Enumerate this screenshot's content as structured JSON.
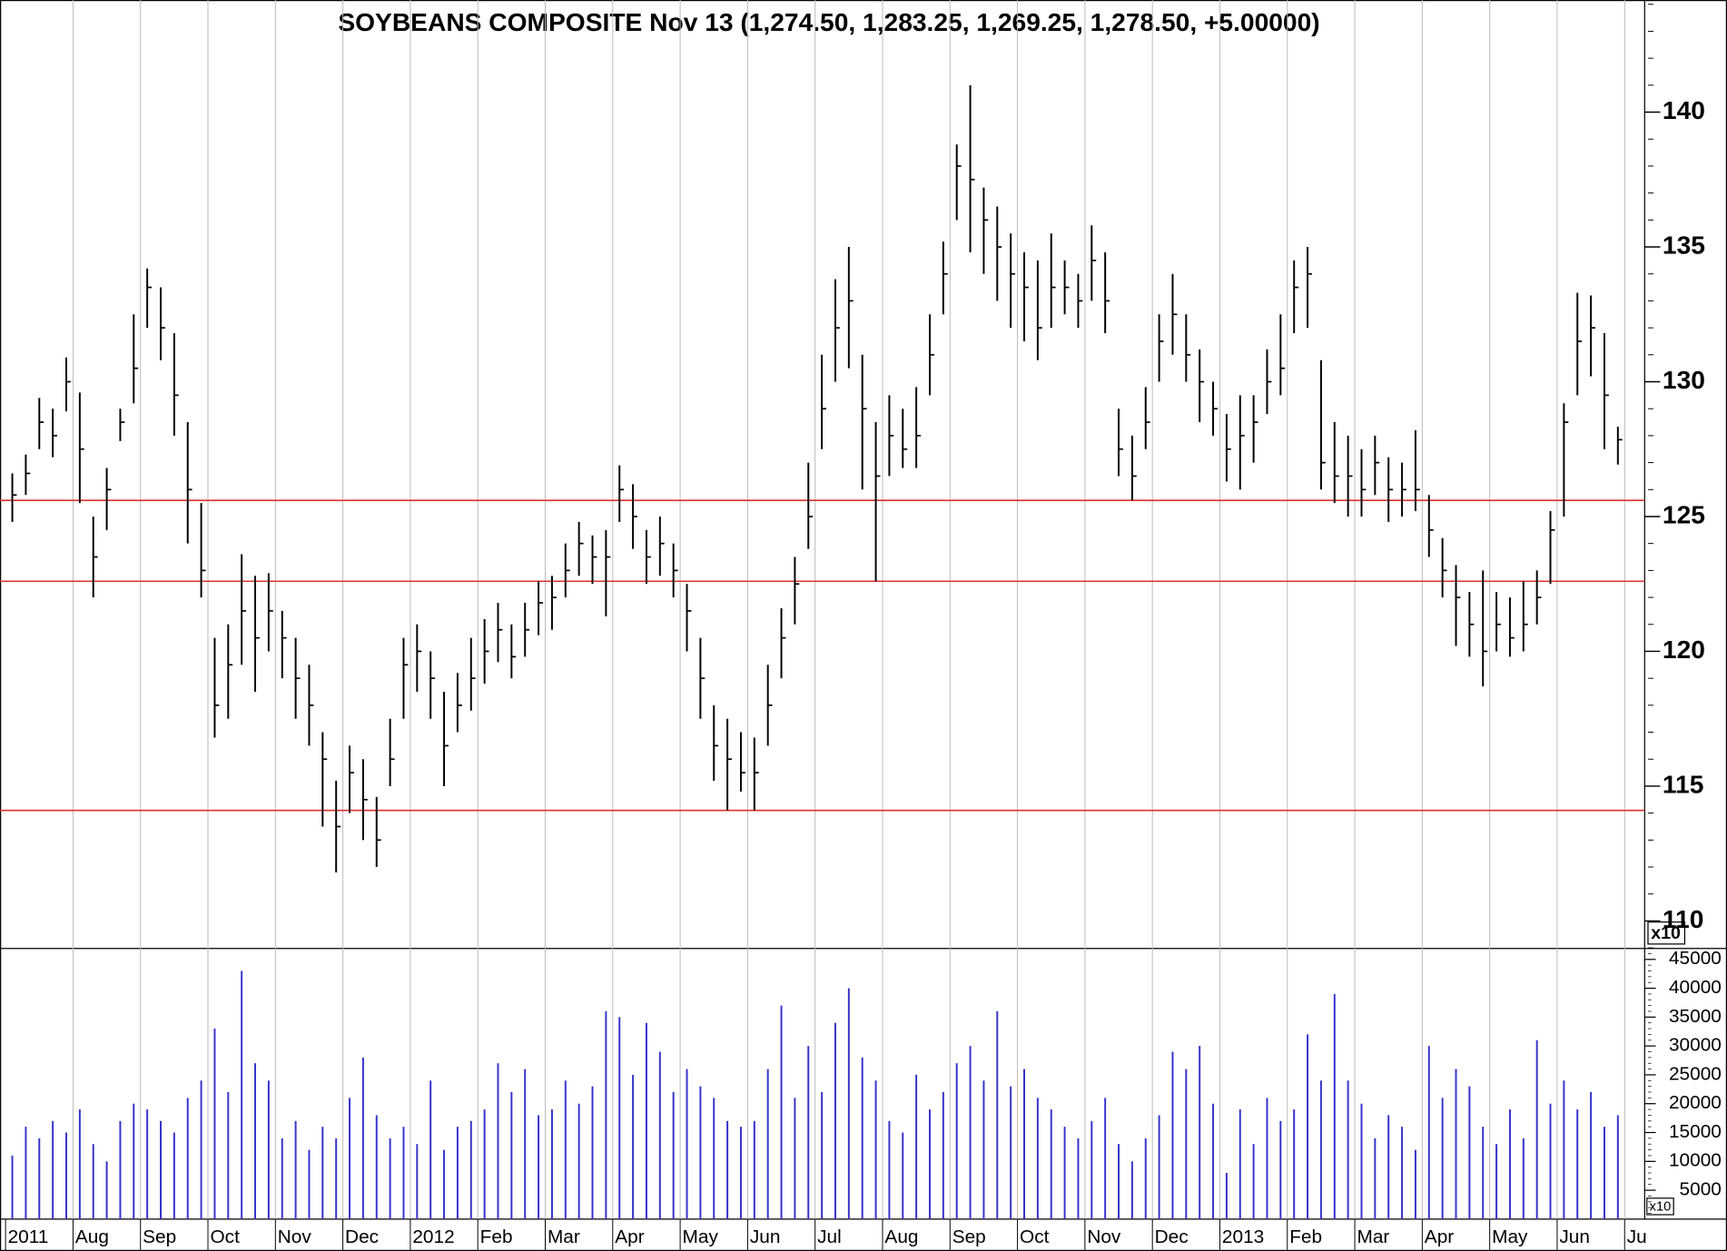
{
  "chart_data": [
    {
      "type": "ohlc",
      "title": "SOYBEANS COMPOSITE Nov 13 (1,274.50, 1,283.25, 1,269.25, 1,278.50, +5.00000)",
      "ylim": [
        108.98,
        144.16
      ],
      "yticks": [
        110,
        115,
        120,
        125,
        130,
        135,
        140
      ],
      "y_multiplier": "x10",
      "color": "#000000",
      "hlines": [
        125.6,
        122.6,
        114.1
      ],
      "hline_color": "#e03030",
      "series": {
        "close": [
          125.8,
          126.6,
          128.5,
          128.0,
          130.0,
          127.5,
          123.5,
          126.0,
          128.5,
          130.5,
          133.5,
          132.0,
          129.5,
          126.0,
          123.0,
          118.0,
          119.5,
          121.5,
          120.5,
          121.5,
          120.5,
          119.0,
          118.0,
          116.0,
          113.5,
          115.5,
          114.5,
          113.0,
          116.0,
          119.5,
          120.0,
          119.0,
          116.5,
          118.0,
          119.0,
          120.0,
          120.8,
          119.8,
          120.8,
          121.8,
          122.0,
          123.0,
          124.0,
          123.5,
          123.5,
          126.0,
          125.0,
          123.5,
          124.0,
          123.0,
          121.5,
          119.0,
          116.5,
          116.0,
          115.5,
          115.5,
          118.0,
          120.5,
          122.5,
          125.0,
          129.0,
          132.0,
          133.0,
          129.0,
          126.5,
          128.0,
          127.5,
          128.0,
          131.0,
          134.0,
          138.0,
          137.5,
          136.0,
          135.0,
          134.0,
          133.5,
          132.0,
          133.5,
          133.5,
          133.0,
          134.5,
          133.0,
          127.5,
          126.5,
          128.5,
          131.5,
          132.5,
          131.0,
          130.0,
          129.0,
          127.5,
          128.0,
          128.5,
          130.0,
          130.5,
          133.5,
          134.0,
          127.0,
          126.5,
          126.5,
          126.0,
          127.0,
          126.0,
          126.0,
          126.0,
          124.5,
          123.0,
          122.0,
          121.0,
          120.0,
          121.0,
          120.5,
          121.0,
          122.0,
          124.5,
          128.5,
          131.5,
          132.0,
          129.5,
          127.85
        ],
        "high": [
          126.6,
          127.3,
          129.4,
          129.0,
          130.9,
          129.6,
          125.0,
          126.8,
          129.0,
          132.5,
          134.2,
          133.5,
          131.8,
          128.5,
          125.5,
          120.5,
          121.0,
          123.6,
          122.8,
          122.9,
          121.5,
          120.5,
          119.5,
          117.0,
          115.2,
          116.5,
          116.0,
          114.6,
          117.5,
          120.5,
          121.0,
          120.0,
          118.5,
          119.2,
          120.5,
          121.2,
          121.8,
          121.0,
          121.8,
          122.6,
          122.8,
          124.0,
          124.8,
          124.3,
          124.5,
          126.9,
          126.2,
          124.5,
          125.0,
          124.0,
          122.5,
          120.5,
          118.0,
          117.5,
          117.0,
          116.8,
          119.5,
          121.6,
          123.5,
          127.0,
          131.0,
          133.8,
          135.0,
          131.0,
          128.5,
          129.5,
          129.0,
          129.8,
          132.5,
          135.2,
          138.8,
          141.0,
          137.2,
          136.5,
          135.5,
          134.8,
          134.5,
          135.5,
          134.5,
          134.0,
          135.8,
          134.8,
          129.0,
          128.0,
          129.8,
          132.5,
          134.0,
          132.5,
          131.2,
          130.0,
          128.8,
          129.5,
          129.5,
          131.2,
          132.5,
          134.5,
          135.0,
          130.8,
          128.5,
          128.0,
          127.5,
          128.0,
          127.2,
          127.0,
          128.2,
          125.8,
          124.2,
          123.2,
          122.2,
          123.0,
          122.2,
          122.0,
          122.6,
          123.0,
          125.2,
          129.2,
          133.3,
          133.2,
          131.8,
          128.33
        ],
        "low": [
          124.8,
          125.8,
          127.5,
          127.2,
          128.9,
          125.5,
          122.0,
          124.5,
          127.8,
          129.2,
          132.0,
          130.8,
          128.0,
          124.0,
          122.0,
          116.8,
          117.5,
          119.5,
          118.5,
          120.0,
          119.0,
          117.5,
          116.5,
          113.5,
          111.8,
          114.0,
          113.0,
          112.0,
          115.0,
          117.5,
          118.5,
          117.5,
          115.0,
          117.0,
          117.8,
          118.8,
          119.6,
          119.0,
          119.8,
          120.6,
          120.8,
          122.0,
          122.8,
          122.5,
          121.3,
          124.8,
          123.8,
          122.5,
          122.8,
          122.0,
          120.0,
          117.5,
          115.2,
          114.1,
          114.8,
          114.1,
          116.5,
          119.0,
          121.0,
          123.8,
          127.5,
          130.0,
          130.5,
          126.0,
          122.6,
          126.5,
          126.8,
          126.8,
          129.5,
          132.5,
          136.0,
          134.8,
          134.0,
          133.0,
          132.0,
          131.5,
          130.8,
          132.0,
          132.5,
          132.0,
          133.0,
          131.8,
          126.5,
          125.6,
          127.5,
          130.0,
          131.0,
          130.0,
          128.5,
          128.0,
          126.3,
          126.0,
          127.0,
          128.8,
          129.5,
          131.8,
          132.0,
          126.0,
          125.5,
          125.0,
          125.0,
          125.8,
          124.8,
          125.0,
          125.2,
          123.5,
          122.0,
          120.2,
          119.8,
          118.7,
          120.0,
          119.8,
          120.0,
          121.0,
          122.5,
          125.0,
          129.5,
          130.2,
          127.5,
          126.93
        ]
      }
    },
    {
      "type": "bar",
      "color": "#3333cc",
      "ylim": [
        0,
        46900
      ],
      "yticks": [
        5000,
        10000,
        15000,
        20000,
        25000,
        30000,
        35000,
        40000,
        45000
      ],
      "y_multiplier": "x10",
      "categories": [
        "2011",
        null,
        null,
        null,
        null,
        "Aug",
        null,
        null,
        null,
        null,
        "Sep",
        null,
        null,
        null,
        null,
        "Oct",
        null,
        null,
        null,
        null,
        "Nov",
        null,
        null,
        null,
        null,
        "Dec",
        null,
        null,
        null,
        null,
        "2012",
        null,
        null,
        null,
        null,
        "Feb",
        null,
        null,
        null,
        null,
        "Mar",
        null,
        null,
        null,
        null,
        "Apr",
        null,
        null,
        null,
        null,
        "May",
        null,
        null,
        null,
        null,
        "Jun",
        null,
        null,
        null,
        null,
        "Jul",
        null,
        null,
        null,
        null,
        "Aug",
        null,
        null,
        null,
        null,
        "Sep",
        null,
        null,
        null,
        null,
        "Oct",
        null,
        null,
        null,
        null,
        "Nov",
        null,
        null,
        null,
        null,
        "Dec",
        null,
        null,
        null,
        null,
        "2013",
        null,
        null,
        null,
        null,
        "Feb",
        null,
        null,
        null,
        null,
        "Mar",
        null,
        null,
        null,
        null,
        "Apr",
        null,
        null,
        null,
        null,
        "May",
        null,
        null,
        null,
        null,
        "Jun",
        null,
        null,
        null,
        null,
        "Ju"
      ],
      "values": [
        11000,
        16000,
        14000,
        17000,
        15000,
        19000,
        13000,
        10000,
        17000,
        20000,
        19000,
        17000,
        15000,
        21000,
        24000,
        33000,
        22000,
        43000,
        27000,
        24000,
        14000,
        17000,
        12000,
        16000,
        14000,
        21000,
        28000,
        18000,
        14000,
        16000,
        13000,
        24000,
        12000,
        16000,
        17000,
        19000,
        27000,
        22000,
        26000,
        18000,
        19000,
        24000,
        20000,
        23000,
        36000,
        35000,
        25000,
        34000,
        29000,
        22000,
        26000,
        23000,
        21000,
        17000,
        16000,
        17000,
        26000,
        37000,
        21000,
        30000,
        22000,
        34000,
        40000,
        28000,
        24000,
        17000,
        15000,
        25000,
        19000,
        22000,
        27000,
        30000,
        24000,
        36000,
        23000,
        26000,
        21000,
        19000,
        16000,
        14000,
        17000,
        21000,
        13000,
        10000,
        14000,
        18000,
        29000,
        26000,
        30000,
        20000,
        8000,
        19000,
        13000,
        21000,
        17000,
        19000,
        32000,
        24000,
        39000,
        24000,
        20000,
        14000,
        18000,
        16000,
        12000,
        30000,
        21000,
        26000,
        23000,
        16000,
        13000,
        19000,
        14000,
        31000,
        20000,
        24000,
        19000,
        22000,
        16000,
        18000,
        null
      ]
    }
  ]
}
